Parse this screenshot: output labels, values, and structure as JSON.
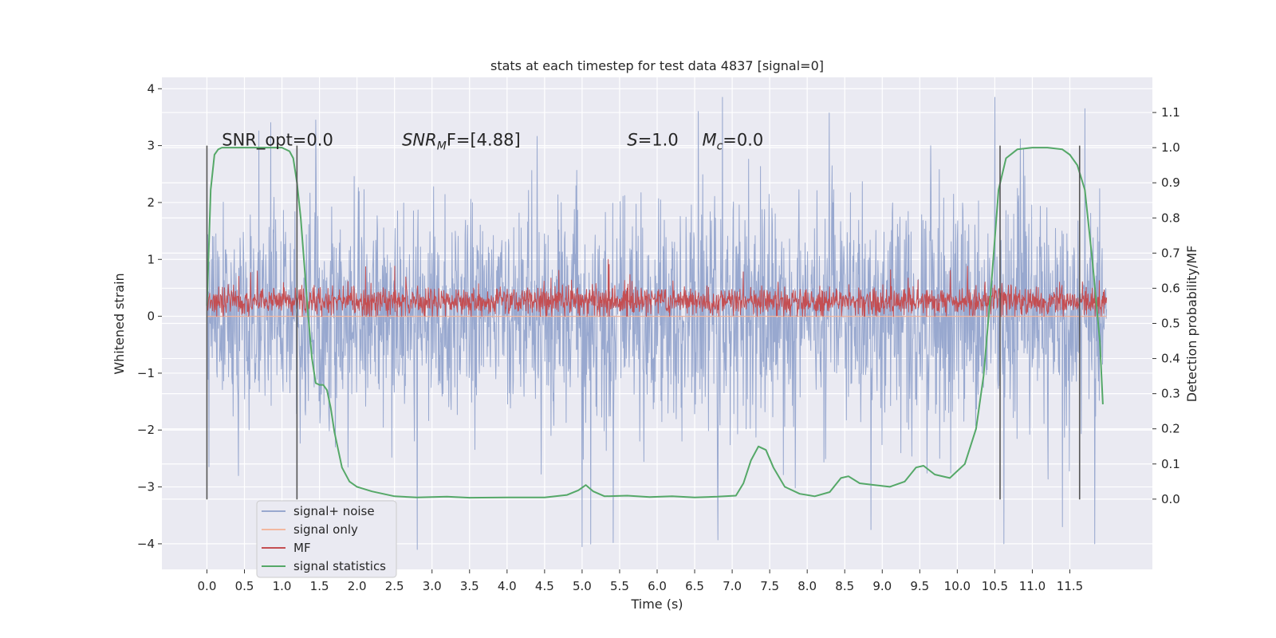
{
  "chart_data": {
    "type": "line",
    "title": "stats at each timestep for test data 4837 [signal=0]",
    "xlabel": "Time (s)",
    "ylabel": "Whitened strain",
    "ylabel_right": "Detection probability/MF",
    "xlim": [
      -0.6,
      12.6
    ],
    "ylim": [
      -4.45,
      4.2
    ],
    "ylim_right": [
      -0.2,
      1.2
    ],
    "x_ticks": [
      0.0,
      0.5,
      1.0,
      1.5,
      2.0,
      2.5,
      3.0,
      3.5,
      4.0,
      4.5,
      5.0,
      5.5,
      6.0,
      6.5,
      7.0,
      7.5,
      8.0,
      8.5,
      9.0,
      9.5,
      10.0,
      10.5,
      11.0,
      11.5
    ],
    "x_tick_labels": [
      "0.0",
      "0.5",
      "1.0",
      "1.5",
      "2.0",
      "2.5",
      "3.0",
      "3.5",
      "4.0",
      "4.5",
      "5.0",
      "5.5",
      "6.0",
      "6.5",
      "7.0",
      "7.5",
      "8.0",
      "8.5",
      "9.0",
      "9.5",
      "10.0",
      "10.5",
      "11.0",
      "11.5"
    ],
    "y_ticks": [
      -4,
      -3,
      -2,
      -1,
      0,
      1,
      2,
      3,
      4
    ],
    "y_tick_labels": [
      "−4",
      "−3",
      "−2",
      "−1",
      "0",
      "1",
      "2",
      "3",
      "4"
    ],
    "y_right_ticks": [
      0.0,
      0.1,
      0.2,
      0.3,
      0.4,
      0.5,
      0.6,
      0.7,
      0.8,
      0.9,
      1.0,
      1.1
    ],
    "y_right_tick_labels": [
      "0.0",
      "0.1",
      "0.2",
      "0.3",
      "0.4",
      "0.5",
      "0.6",
      "0.7",
      "0.8",
      "0.9",
      "1.0",
      "1.1"
    ],
    "grid": true,
    "legend_position": "lower-left",
    "annotations": [
      {
        "text_plain": "SNR_opt=0.0",
        "x": 0.2
      },
      {
        "text_base": "SNR",
        "text_sub": "M",
        "text_rest": "F=[4.88]",
        "x": 2.6
      },
      {
        "text_base": "S",
        "text_rest": "=1.0",
        "x": 5.6
      },
      {
        "text_base": "M",
        "text_sub": "c",
        "text_rest": "=0.0",
        "x": 6.6
      }
    ],
    "annotation_y": 3.0,
    "vertical_markers": {
      "x": [
        0.0,
        1.2,
        10.57,
        11.63
      ],
      "ymin": -3.22,
      "ymax": 3.0,
      "color": "#555555"
    },
    "series": [
      {
        "name": "signal+ noise",
        "axis": "left",
        "color": "#98a8cf",
        "kind": "noise",
        "x_range": [
          0.0,
          11.99
        ],
        "typical_range": [
          -1.6,
          1.9
        ],
        "extreme_range": [
          -4.1,
          3.85
        ],
        "noted_peaks": [
          {
            "x": 1.45,
            "y": 3.45
          },
          {
            "x": 5.0,
            "y": -4.05
          },
          {
            "x": 6.55,
            "y": 3.6
          },
          {
            "x": 6.87,
            "y": 3.85
          },
          {
            "x": 10.5,
            "y": 3.85
          },
          {
            "x": 10.62,
            "y": -4.0
          },
          {
            "x": 11.4,
            "y": -3.7
          },
          {
            "x": 11.7,
            "y": 3.65
          },
          {
            "x": 2.8,
            "y": -4.1
          },
          {
            "x": 8.85,
            "y": -3.75
          }
        ]
      },
      {
        "name": "signal only",
        "axis": "left",
        "color": "#f2b8a0",
        "x": [
          0.0,
          11.99
        ],
        "y": [
          0.0,
          0.0
        ]
      },
      {
        "name": "MF",
        "axis": "left",
        "color": "#c44e52",
        "kind": "noise",
        "x_range": [
          0.0,
          11.99
        ],
        "typical_range": [
          0.02,
          0.5
        ],
        "extreme_range": [
          0.0,
          1.0
        ],
        "noted_peaks": [
          {
            "x": 5.35,
            "y": 1.0
          },
          {
            "x": 2.5,
            "y": 0.88
          },
          {
            "x": 7.15,
            "y": 0.78
          }
        ]
      },
      {
        "name": "signal statistics",
        "axis": "right",
        "color": "#55a868",
        "x": [
          0.0,
          0.05,
          0.1,
          0.15,
          0.2,
          0.3,
          0.5,
          0.8,
          1.0,
          1.1,
          1.15,
          1.2,
          1.25,
          1.3,
          1.35,
          1.4,
          1.45,
          1.5,
          1.55,
          1.6,
          1.65,
          1.7,
          1.8,
          1.9,
          2.0,
          2.2,
          2.5,
          2.8,
          3.2,
          3.5,
          4.0,
          4.5,
          4.8,
          4.95,
          5.05,
          5.15,
          5.3,
          5.6,
          5.9,
          6.2,
          6.5,
          6.8,
          7.05,
          7.15,
          7.25,
          7.35,
          7.45,
          7.55,
          7.7,
          7.9,
          8.1,
          8.3,
          8.45,
          8.55,
          8.7,
          8.9,
          9.1,
          9.3,
          9.45,
          9.55,
          9.7,
          9.9,
          10.1,
          10.25,
          10.35,
          10.45,
          10.55,
          10.65,
          10.8,
          11.0,
          11.2,
          11.4,
          11.5,
          11.6,
          11.7,
          11.8,
          11.9,
          11.94
        ],
        "y": [
          0.55,
          0.88,
          0.98,
          0.995,
          1.0,
          1.0,
          1.0,
          1.0,
          1.0,
          0.99,
          0.97,
          0.9,
          0.8,
          0.66,
          0.52,
          0.4,
          0.33,
          0.325,
          0.325,
          0.31,
          0.26,
          0.19,
          0.09,
          0.05,
          0.035,
          0.022,
          0.008,
          0.005,
          0.007,
          0.004,
          0.005,
          0.005,
          0.012,
          0.025,
          0.04,
          0.022,
          0.008,
          0.01,
          0.006,
          0.008,
          0.005,
          0.007,
          0.01,
          0.045,
          0.11,
          0.15,
          0.14,
          0.09,
          0.035,
          0.015,
          0.008,
          0.02,
          0.06,
          0.065,
          0.045,
          0.04,
          0.035,
          0.05,
          0.09,
          0.095,
          0.07,
          0.06,
          0.1,
          0.2,
          0.35,
          0.6,
          0.88,
          0.97,
          0.995,
          1.0,
          1.0,
          0.995,
          0.98,
          0.95,
          0.88,
          0.68,
          0.45,
          0.27
        ]
      }
    ]
  }
}
